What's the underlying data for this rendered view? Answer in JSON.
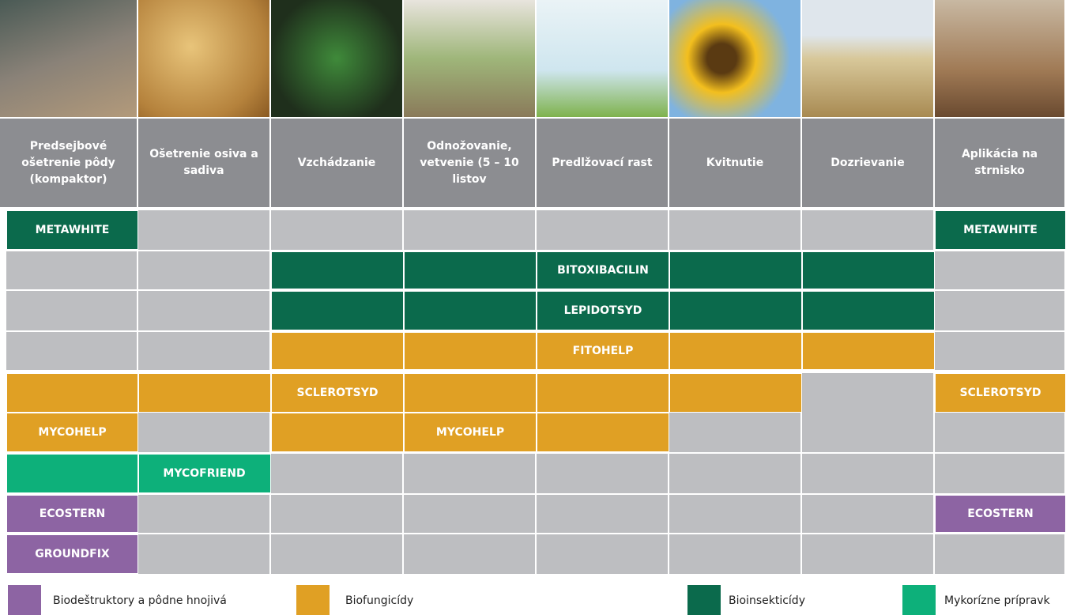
{
  "header": {
    "stages": [
      "Predsejbové ošetrenie pôdy (kompaktor)",
      "Ošetrenie osiva a sadiva",
      "Vzchádzanie",
      "Odnožovanie, vetvenie (5 – 10 listov",
      "Predlžovací rast",
      "Kvitnutie",
      "Dozrievanie",
      "Aplikácia na strnisko"
    ]
  },
  "rows": [
    {
      "products": [
        {
          "label": "METAWHITE"
        },
        {
          "label": "METAWHITE"
        }
      ]
    },
    {
      "products": [
        {
          "label": "BITOXIBACILIN"
        }
      ]
    },
    {
      "products": [
        {
          "label": "LEPIDOTSYD"
        }
      ]
    },
    {
      "products": [
        {
          "label": "FITOHELP"
        }
      ]
    },
    {
      "products": [
        {
          "label": "SCLEROTSYD"
        },
        {
          "label": "SCLEROTSYD"
        }
      ]
    },
    {
      "products": [
        {
          "label": "MYCOHELP"
        },
        {
          "label": "MYCOHELP"
        }
      ]
    },
    {
      "products": [
        {
          "label": "MYCOFRIEND"
        }
      ]
    },
    {
      "products": [
        {
          "label": "ECOSTERN"
        },
        {
          "label": "ECOSTERN"
        }
      ]
    },
    {
      "products": [
        {
          "label": "GROUNDFIX"
        }
      ]
    }
  ],
  "legend": [
    "Biodeštruktory a pôdne hnojivá",
    "Biofungicídy",
    "Bioinsekticídy",
    "Mykorízne prípravk"
  ]
}
